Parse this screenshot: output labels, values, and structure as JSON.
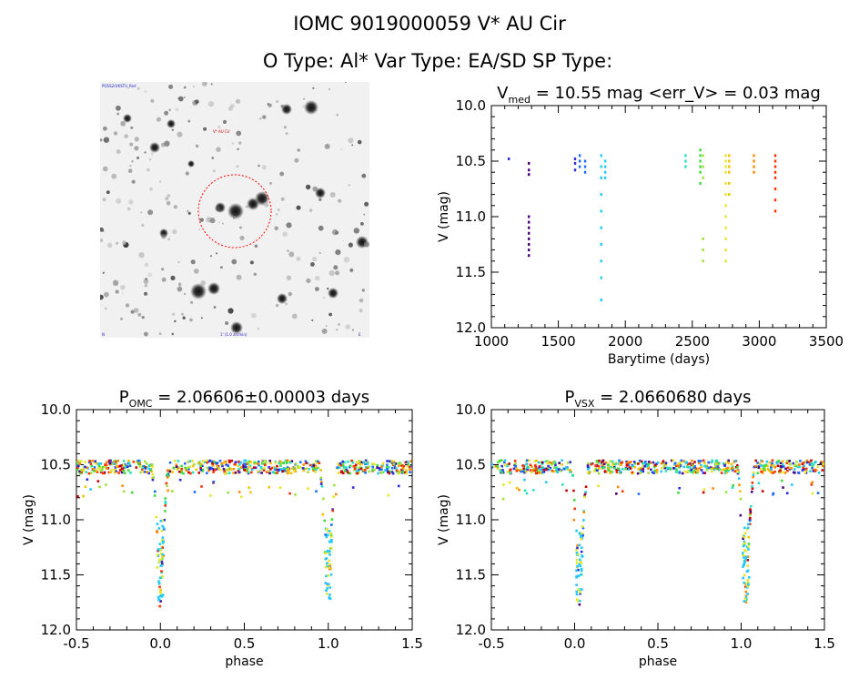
{
  "header": {
    "title": "IOMC 9019000059    V* AU Cir",
    "subtitle": "O Type: Al*  Var Type: EA/SD  SP Type:"
  },
  "finder": {
    "top_left_label": "POSS2/UKSTU_Red",
    "target_label": "V* AU Cir",
    "bottom_center_label": "1' (1.0 arcmin)",
    "bottom_left_label": "N",
    "bottom_right_label": "E"
  },
  "colors": {
    "axis": "#000000",
    "circle": "#ff0000",
    "palette": [
      "#4b0082",
      "#2a2ae0",
      "#1b6bff",
      "#22c8ff",
      "#23e0c0",
      "#3ddc3d",
      "#9de23a",
      "#e6e62a",
      "#f5c000",
      "#ff8a00",
      "#ff3300",
      "#c80000"
    ]
  },
  "chart_data": [
    {
      "type": "scatter",
      "id": "light_curve",
      "title_main": "V",
      "title_sub": "med",
      "title_rest": " = 10.55 mag <err_V> = 0.03 mag",
      "xlabel": "Barytime (days)",
      "ylabel": "V (mag)",
      "xlim": [
        1000,
        3500
      ],
      "ylim": [
        12.0,
        10.0
      ],
      "xticks": [
        "1000",
        "1500",
        "2000",
        "2500",
        "3000",
        "3500"
      ],
      "yticks": [
        "10.0",
        "10.5",
        "11.0",
        "11.5",
        "12.0"
      ],
      "series": [
        {
          "x": 1130,
          "values": [
            10.48
          ],
          "color_index": 1
        },
        {
          "x": 1280,
          "values": [
            10.52,
            10.58,
            10.62,
            11.0,
            11.05,
            11.1,
            11.15,
            11.2,
            11.25,
            11.3,
            11.35
          ],
          "color_index": 0
        },
        {
          "x": 1625,
          "values": [
            10.48,
            10.52,
            10.58
          ],
          "color_index": 1
        },
        {
          "x": 1660,
          "values": [
            10.45,
            10.5,
            10.55
          ],
          "color_index": 2
        },
        {
          "x": 1700,
          "values": [
            10.5,
            10.55,
            10.6
          ],
          "color_index": 2
        },
        {
          "x": 1820,
          "values": [
            10.45,
            10.55,
            10.65,
            10.8,
            10.95,
            11.1,
            11.25,
            11.4,
            11.55,
            11.75
          ],
          "color_index": 3
        },
        {
          "x": 1850,
          "values": [
            10.5,
            10.55,
            10.6,
            10.65
          ],
          "color_index": 3
        },
        {
          "x": 2450,
          "values": [
            10.45,
            10.5,
            10.55
          ],
          "color_index": 4
        },
        {
          "x": 2560,
          "values": [
            10.4,
            10.45,
            10.5,
            10.55,
            10.6,
            10.7
          ],
          "color_index": 5
        },
        {
          "x": 2580,
          "values": [
            10.45,
            10.55,
            10.65,
            11.2,
            11.3,
            11.4
          ],
          "color_index": 6
        },
        {
          "x": 2750,
          "values": [
            10.45,
            10.5,
            10.55,
            10.6,
            10.7,
            10.8,
            10.9,
            11.0,
            11.1,
            11.2,
            11.3,
            11.4
          ],
          "color_index": 7
        },
        {
          "x": 2775,
          "values": [
            10.45,
            10.5,
            10.55,
            10.6,
            10.7,
            10.8
          ],
          "color_index": 8
        },
        {
          "x": 2960,
          "values": [
            10.45,
            10.5,
            10.55,
            10.6
          ],
          "color_index": 9
        },
        {
          "x": 3120,
          "values": [
            10.45,
            10.5,
            10.55,
            10.6,
            10.65,
            10.75,
            10.85,
            10.95
          ],
          "color_index": 10
        }
      ]
    },
    {
      "type": "scatter",
      "id": "phase_omc",
      "title_main": "P",
      "title_sub": "OMC",
      "title_rest": " = 2.06606±0.00003 days",
      "xlabel": "phase",
      "ylabel": "V (mag)",
      "xlim": [
        -0.5,
        1.5
      ],
      "ylim": [
        12.0,
        10.0
      ],
      "xticks": [
        "-0.5",
        "0.0",
        "0.5",
        "1.0",
        "1.5"
      ],
      "yticks": [
        "10.0",
        "10.5",
        "11.0",
        "11.5",
        "12.0"
      ],
      "primary_minimum_phase": 0.0,
      "primary_minimum_mag": 11.75,
      "out_of_eclipse_mag": 10.5
    },
    {
      "type": "scatter",
      "id": "phase_vsx",
      "title_main": "P",
      "title_sub": "VSX",
      "title_rest": " = 2.0660680 days",
      "xlabel": "phase",
      "ylabel": "V (mag)",
      "xlim": [
        -0.5,
        1.5
      ],
      "ylim": [
        12.0,
        10.0
      ],
      "xticks": [
        "-0.5",
        "0.0",
        "0.5",
        "1.0",
        "1.5"
      ],
      "yticks": [
        "10.0",
        "10.5",
        "11.0",
        "11.5",
        "12.0"
      ],
      "primary_minimum_phase": 0.03,
      "primary_minimum_mag": 11.75,
      "out_of_eclipse_mag": 10.5
    }
  ]
}
